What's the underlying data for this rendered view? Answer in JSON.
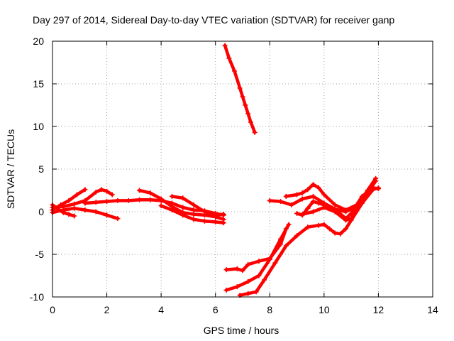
{
  "chart_data": {
    "type": "scatter",
    "title": "Day 297 of 2014, Sidereal Day-to-day VTEC variation (SDTVAR) for receiver ganp",
    "xlabel": "GPS time / hours",
    "ylabel": "SDTVAR / TECUs",
    "xlim": [
      0,
      14
    ],
    "ylim": [
      -10,
      20
    ],
    "xticks": [
      "0",
      "2",
      "4",
      "6",
      "8",
      "10",
      "12",
      "14"
    ],
    "yticks": [
      "-10",
      "-5",
      "0",
      "5",
      "10",
      "15",
      "20"
    ],
    "grid": true,
    "marker_color": "#ff0000",
    "series": [
      {
        "x": [
          0.0,
          0.3,
          0.6,
          0.9,
          1.2
        ],
        "y": [
          0.2,
          0.8,
          1.3,
          2.0,
          2.6
        ]
      },
      {
        "x": [
          0.0,
          0.2,
          0.4,
          0.6,
          0.8
        ],
        "y": [
          0.8,
          0.3,
          -0.1,
          -0.3,
          -0.5
        ]
      },
      {
        "x": [
          0.0,
          0.4,
          0.8,
          1.2,
          1.6,
          2.0,
          2.4
        ],
        "y": [
          -0.1,
          0.2,
          0.4,
          0.2,
          0.0,
          -0.4,
          -0.8
        ]
      },
      {
        "x": [
          0.0,
          0.4,
          0.8,
          1.2,
          1.6,
          1.8,
          2.0,
          2.2
        ],
        "y": [
          0.5,
          0.6,
          0.9,
          1.3,
          2.3,
          2.6,
          2.4,
          2.0
        ]
      },
      {
        "x": [
          1.2,
          1.6,
          2.0,
          2.4,
          2.8,
          3.2,
          3.6,
          4.0,
          4.4,
          4.8,
          5.2,
          5.6,
          6.0,
          6.3
        ],
        "y": [
          1.0,
          1.1,
          1.2,
          1.3,
          1.3,
          1.4,
          1.4,
          1.3,
          1.0,
          0.5,
          0.2,
          0.1,
          -0.2,
          -0.4
        ]
      },
      {
        "x": [
          3.2,
          3.6,
          4.0,
          4.4,
          4.8,
          5.2,
          5.6,
          6.0,
          6.3
        ],
        "y": [
          2.5,
          2.2,
          1.5,
          0.6,
          -0.1,
          -0.3,
          -0.4,
          -0.6,
          -0.9
        ]
      },
      {
        "x": [
          4.4,
          4.8,
          5.2,
          5.6,
          6.0,
          6.3
        ],
        "y": [
          1.8,
          1.6,
          0.8,
          0.0,
          -0.4,
          -0.3
        ]
      },
      {
        "x": [
          4.0,
          4.4,
          4.8,
          5.2,
          5.6,
          6.0,
          6.3
        ],
        "y": [
          0.7,
          0.2,
          -0.4,
          -0.9,
          -1.1,
          -1.2,
          -1.3
        ]
      },
      {
        "x": [
          6.35,
          6.5,
          6.7,
          6.9,
          7.0,
          7.1,
          7.2,
          7.3,
          7.45
        ],
        "y": [
          19.5,
          18.0,
          16.5,
          14.5,
          13.5,
          12.5,
          11.5,
          10.5,
          9.3
        ]
      },
      {
        "x": [
          6.4,
          6.8,
          7.2,
          7.6,
          8.0,
          8.4,
          8.7
        ],
        "y": [
          -9.2,
          -8.8,
          -8.2,
          -7.5,
          -5.6,
          -3.2,
          -1.5
        ]
      },
      {
        "x": [
          6.4,
          6.8,
          7.0,
          7.2,
          7.6,
          8.0,
          8.4,
          8.6
        ],
        "y": [
          -6.8,
          -6.7,
          -6.9,
          -6.2,
          -5.8,
          -5.5,
          -3.8,
          -2.0
        ]
      },
      {
        "x": [
          6.9,
          7.2,
          7.5,
          7.8,
          8.2,
          8.6,
          9.0,
          9.4,
          9.8,
          10.0,
          10.2,
          10.4,
          10.6,
          10.8,
          11.0,
          11.4,
          11.8,
          12.0
        ],
        "y": [
          -9.8,
          -9.6,
          -9.4,
          -8.0,
          -6.0,
          -4.0,
          -2.8,
          -1.8,
          -1.6,
          -1.5,
          -2.0,
          -2.5,
          -2.6,
          -2.0,
          -1.0,
          1.0,
          2.6,
          2.8
        ]
      },
      {
        "x": [
          8.0,
          8.4,
          8.8,
          9.2,
          9.6,
          10.0,
          10.4,
          10.8,
          11.2,
          11.6,
          11.9
        ],
        "y": [
          1.3,
          1.2,
          0.8,
          1.5,
          1.8,
          1.0,
          0.3,
          0.0,
          0.6,
          2.5,
          3.9
        ]
      },
      {
        "x": [
          8.6,
          9.0,
          9.2,
          9.4,
          9.6,
          9.8,
          10.0,
          10.4,
          10.8,
          11.2,
          11.6,
          11.9
        ],
        "y": [
          1.8,
          2.0,
          2.2,
          2.6,
          3.2,
          2.8,
          2.0,
          0.8,
          0.2,
          0.8,
          2.2,
          3.6
        ]
      },
      {
        "x": [
          9.0,
          9.2,
          9.4,
          9.6,
          9.8,
          10.0,
          10.4,
          10.8,
          11.0,
          11.4,
          11.8,
          12.0
        ],
        "y": [
          -0.2,
          -0.4,
          0.4,
          1.2,
          1.0,
          0.8,
          0.3,
          -0.8,
          -0.2,
          1.8,
          2.8,
          2.7
        ]
      },
      {
        "x": [
          9.2,
          9.6,
          10.0,
          10.4,
          10.8,
          11.0,
          11.4
        ],
        "y": [
          -0.3,
          0.0,
          0.5,
          0.0,
          -1.0,
          -0.8,
          1.2
        ]
      }
    ]
  }
}
